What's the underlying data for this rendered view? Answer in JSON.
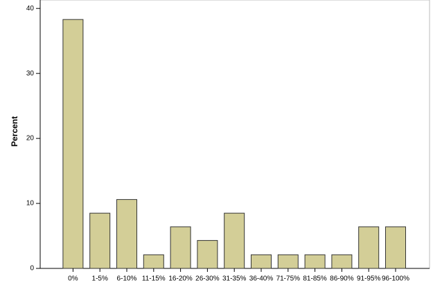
{
  "chart_data": {
    "type": "bar",
    "y_label": "Percent",
    "categories": [
      "0%",
      "1-5%",
      "6-10%",
      "11-15%",
      "16-20%",
      "26-30%",
      "31-35%",
      "36-40%",
      "71-75%",
      "81-85%",
      "86-90%",
      "91-95%",
      "96-100%"
    ],
    "values": [
      38.3,
      8.5,
      10.6,
      2.1,
      6.4,
      4.3,
      8.5,
      2.1,
      2.1,
      2.1,
      2.1,
      6.4,
      6.4
    ],
    "color": "#d3ce97",
    "ylim": [
      0,
      41.3
    ],
    "yticks": [
      0,
      10,
      20,
      30,
      40
    ],
    "grid": false
  }
}
